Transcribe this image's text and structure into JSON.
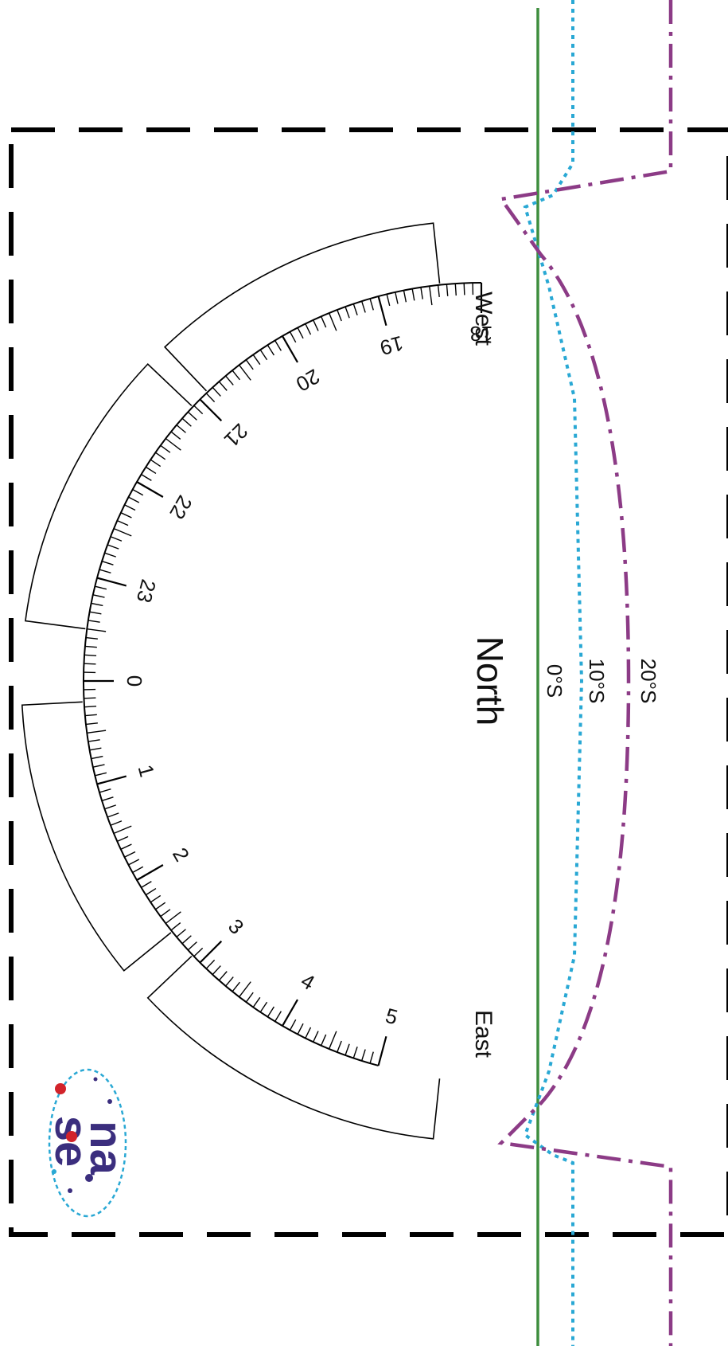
{
  "labels": {
    "north": "North",
    "west": "West",
    "east": "East"
  },
  "hour_scale": {
    "hours": [
      "18",
      "19",
      "20",
      "21",
      "22",
      "23",
      "0",
      "1",
      "2",
      "3",
      "4",
      "5"
    ]
  },
  "latitude_lines": [
    {
      "label": "0°S",
      "color": "#3e8e3e",
      "style": "solid"
    },
    {
      "label": "10°S",
      "color": "#29a8d4",
      "style": "dotted"
    },
    {
      "label": "20°S",
      "color": "#8c3b86",
      "style": "dash-dot"
    }
  ],
  "logo": {
    "text_top": "na",
    "text_bottom": "se",
    "text_color": "#3b2e7e",
    "dot_color": "#d2232a",
    "ring_color": "#29a8d4"
  },
  "colors": {
    "cut_line": "#000000",
    "scale": "#000000"
  }
}
